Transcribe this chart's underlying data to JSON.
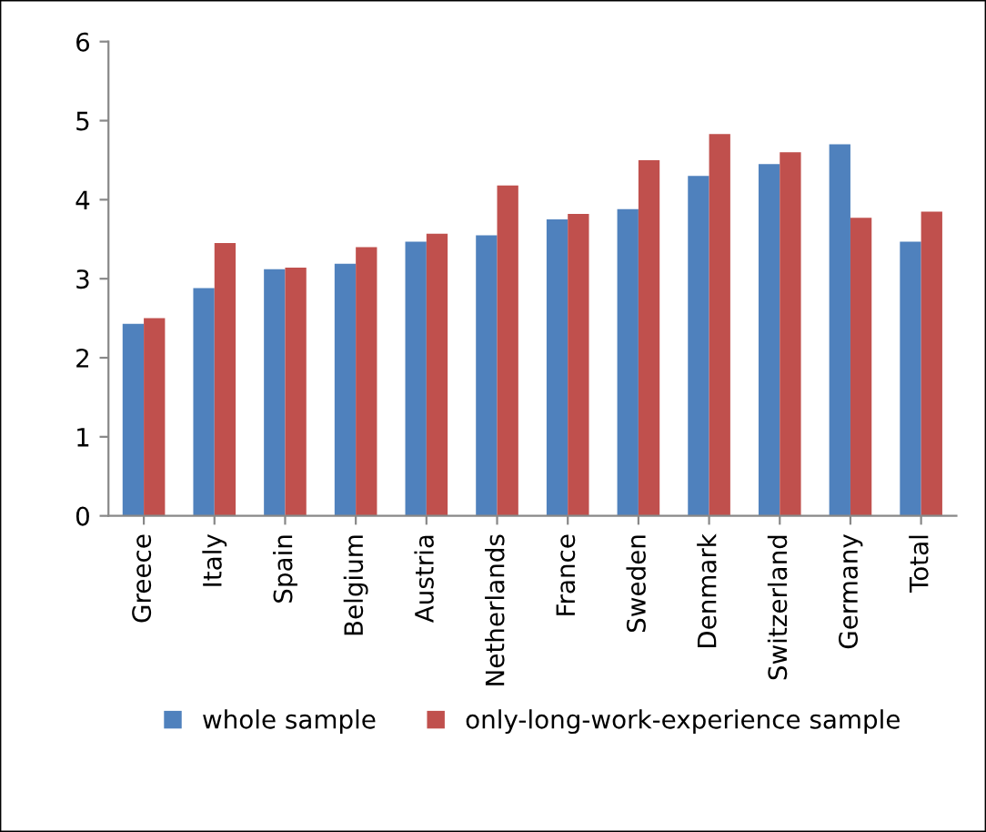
{
  "chart_data": {
    "type": "bar",
    "categories": [
      "Greece",
      "Italy",
      "Spain",
      "Belgium",
      "Austria",
      "Netherlands",
      "France",
      "Sweden",
      "Denmark",
      "Switzerland",
      "Germany",
      "Total"
    ],
    "series": [
      {
        "name": "whole sample",
        "color": "#4f81bd",
        "values": [
          2.43,
          2.88,
          3.12,
          3.19,
          3.47,
          3.55,
          3.75,
          3.88,
          4.3,
          4.45,
          4.7,
          3.47
        ]
      },
      {
        "name": "only-long-work-experience sample",
        "color": "#c0504d",
        "values": [
          2.5,
          3.45,
          3.14,
          3.4,
          3.57,
          4.18,
          3.82,
          4.5,
          4.83,
          4.6,
          3.77,
          3.85
        ]
      }
    ],
    "ylim": [
      0,
      6
    ],
    "yticks": [
      0,
      1,
      2,
      3,
      4,
      5,
      6
    ],
    "grid": false,
    "legend": "bottom"
  }
}
